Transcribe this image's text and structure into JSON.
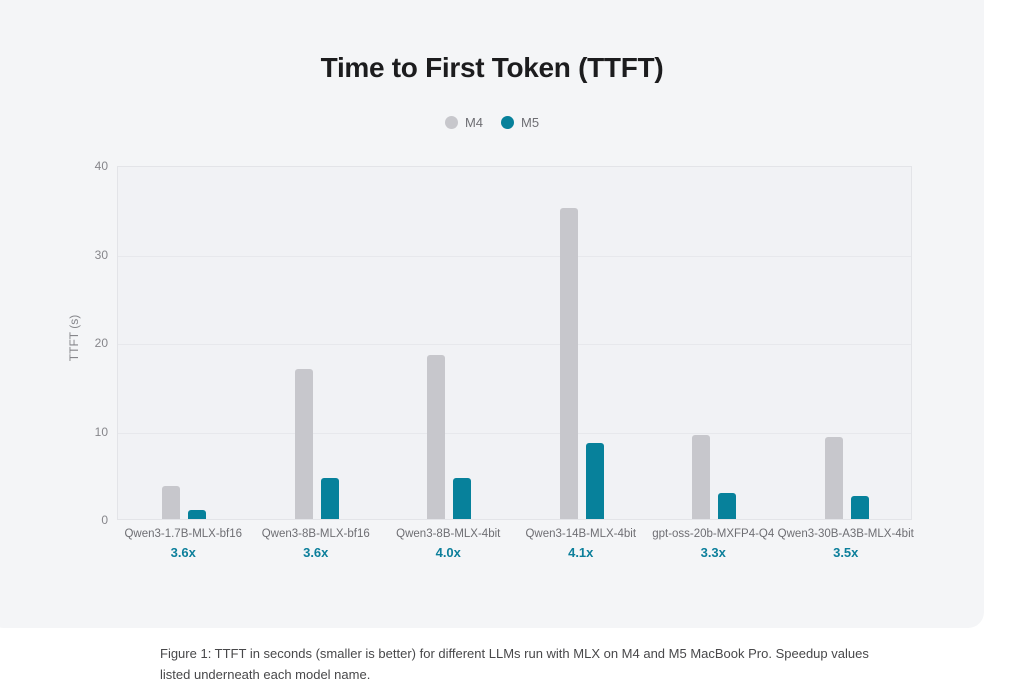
{
  "page": {
    "background_color": "#ffffff",
    "card_color": "#f4f5f7"
  },
  "chart_data": {
    "type": "bar",
    "title": "Time to First Token (TTFT)",
    "categories": [
      "Qwen3-1.7B-MLX-bf16",
      "Qwen3-8B-MLX-bf16",
      "Qwen3-8B-MLX-4bit",
      "Qwen3-14B-MLX-4bit",
      "gpt-oss-20b-MXFP4-Q4",
      "Qwen3-30B-A3B-MLX-4bit"
    ],
    "series": [
      {
        "name": "M4",
        "color": "#c7c7cc",
        "values": [
          3.7,
          16.9,
          18.5,
          35.1,
          9.5,
          9.3
        ]
      },
      {
        "name": "M5",
        "color": "#07819b",
        "values": [
          1.0,
          4.6,
          4.6,
          8.6,
          2.9,
          2.6
        ]
      }
    ],
    "speedups": [
      "3.6x",
      "3.6x",
      "4.0x",
      "4.1x",
      "3.3x",
      "3.5x"
    ],
    "xlabel": "",
    "ylabel": "TTFT (s)",
    "ylim": [
      0,
      40
    ],
    "yticks": [
      0,
      10,
      20,
      30,
      40
    ],
    "grid": true,
    "legend_position": "top-center",
    "speedup_color": "#0c7f9b"
  },
  "caption": "Figure 1: TTFT in seconds (smaller is better) for different LLMs run with MLX on M4 and M5 MacBook Pro. Speedup values listed underneath each model name."
}
